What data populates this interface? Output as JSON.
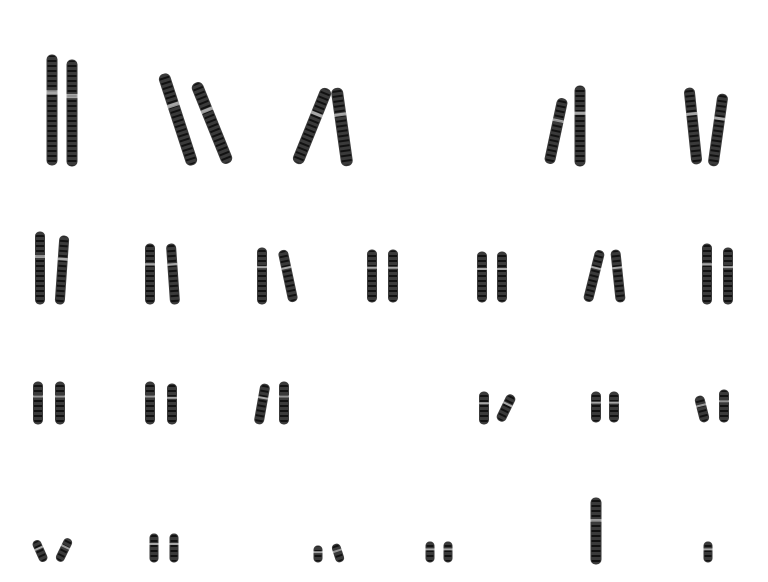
{
  "image": {
    "subject": "karyotype-chromosome-spread",
    "background_color": "#ffffff",
    "chromosome_color": "#3a3a3a",
    "band_color": "#111111"
  },
  "rows": [
    {
      "row": 1,
      "groups": [
        {
          "id": "g1",
          "count": 2
        },
        {
          "id": "g2",
          "count": 2
        },
        {
          "id": "g3",
          "count": 2
        },
        {
          "id": "g4",
          "count": 2
        },
        {
          "id": "g5",
          "count": 2
        }
      ]
    },
    {
      "row": 2,
      "groups": [
        {
          "id": "g6",
          "count": 2
        },
        {
          "id": "g7",
          "count": 2
        },
        {
          "id": "g8",
          "count": 2
        },
        {
          "id": "g9",
          "count": 2
        },
        {
          "id": "g10",
          "count": 2
        },
        {
          "id": "g11",
          "count": 2
        },
        {
          "id": "g12",
          "count": 2
        }
      ]
    },
    {
      "row": 3,
      "groups": [
        {
          "id": "g13",
          "count": 2
        },
        {
          "id": "g14",
          "count": 2
        },
        {
          "id": "g15",
          "count": 2
        },
        {
          "id": "g16",
          "count": 2
        },
        {
          "id": "g17",
          "count": 2
        },
        {
          "id": "g18",
          "count": 2
        }
      ]
    },
    {
      "row": 4,
      "groups": [
        {
          "id": "g19",
          "count": 2
        },
        {
          "id": "g20",
          "count": 2
        },
        {
          "id": "g21",
          "count": 2
        },
        {
          "id": "g22",
          "count": 2
        },
        {
          "id": "gX",
          "count": 1
        },
        {
          "id": "gY",
          "count": 1
        }
      ]
    }
  ]
}
